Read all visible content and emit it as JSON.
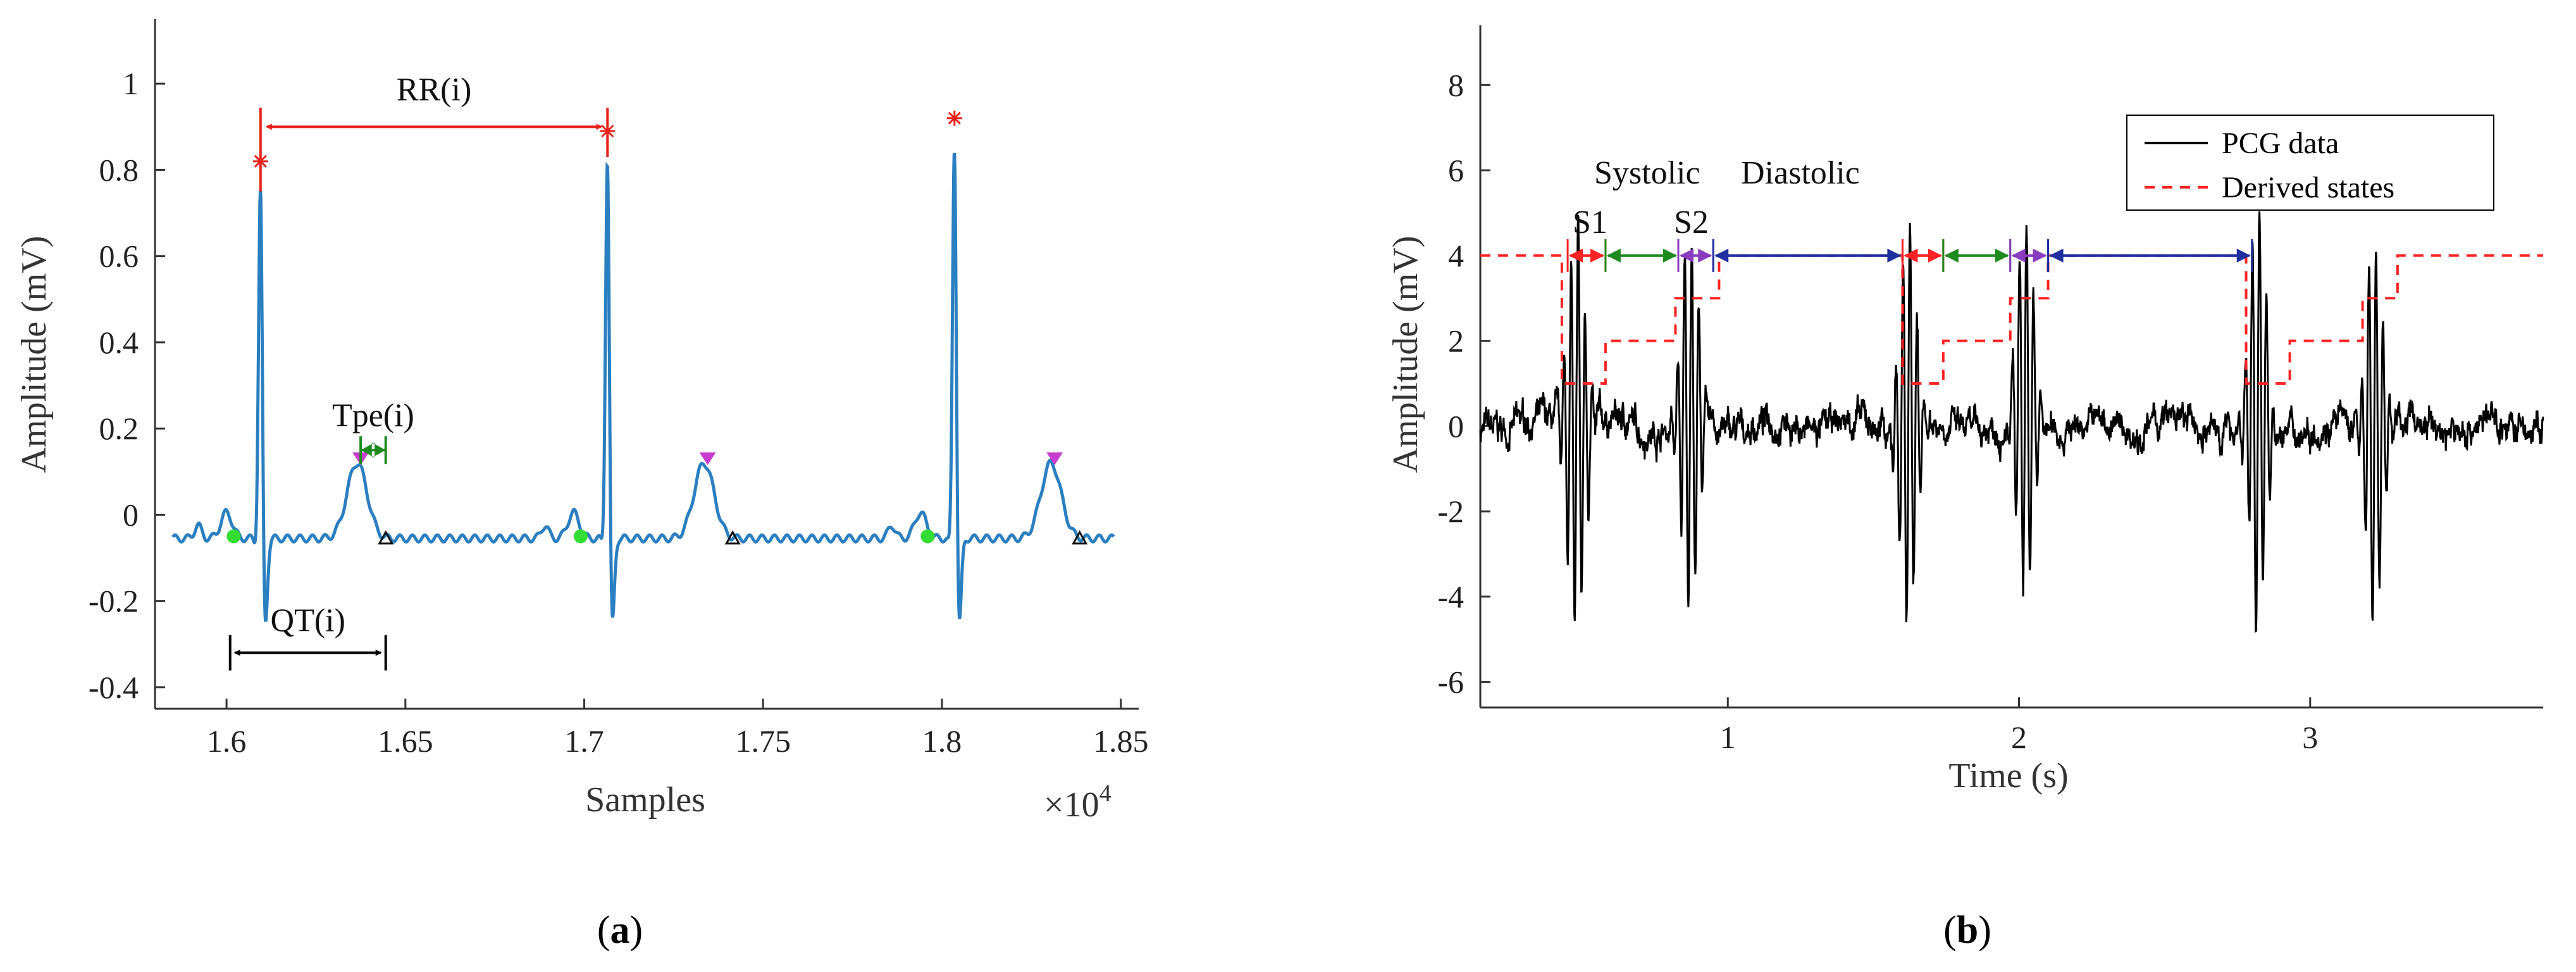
{
  "chart_data": [
    {
      "type": "line",
      "panel_label": "a",
      "xlabel": "Samples",
      "ylabel": "Amplitude (mV)",
      "x_multiplier": "×10",
      "x_multiplier_exp": "4",
      "xlim": [
        1.58,
        1.855
      ],
      "ylim": [
        -0.45,
        1.15
      ],
      "xticks": [
        1.6,
        1.65,
        1.7,
        1.75,
        1.8,
        1.85
      ],
      "xtick_labels": [
        "1.6",
        "1.65",
        "1.7",
        "1.75",
        "1.8",
        "1.85"
      ],
      "yticks": [
        -0.4,
        -0.2,
        0,
        0.2,
        0.4,
        0.6,
        0.8,
        1
      ],
      "ytick_labels": [
        "-0.4",
        "-0.2",
        "0",
        "0.2",
        "0.4",
        "0.6",
        "0.8",
        "1"
      ],
      "colors": {
        "signal": "#2a7fc0",
        "r_peak": "#e8221b",
        "t_peak": "#c83ccf",
        "q_onset": "#33dd33",
        "t_end": "#111111",
        "tpe": "#1e8a1e",
        "qt": "#000000",
        "rr": "#e8221b"
      },
      "r_peaks": [
        [
          1.6095,
          0.82
        ],
        [
          1.7065,
          0.89
        ],
        [
          1.8035,
          0.92
        ]
      ],
      "t_peaks": [
        [
          1.6375,
          0.13
        ],
        [
          1.7345,
          0.13
        ],
        [
          1.8315,
          0.13
        ]
      ],
      "q_onsets": [
        [
          1.602,
          -0.05
        ],
        [
          1.699,
          -0.05
        ],
        [
          1.796,
          -0.05
        ]
      ],
      "t_ends": [
        [
          1.6445,
          -0.055
        ],
        [
          1.7415,
          -0.055
        ],
        [
          1.8385,
          -0.055
        ]
      ],
      "annotations": {
        "rr": {
          "text": "RR(i)",
          "x1": 1.6095,
          "x2": 1.7065,
          "y": 0.9
        },
        "qt": {
          "text": "QT(i)",
          "x1": 1.601,
          "x2": 1.6445,
          "y": -0.32
        },
        "tpe": {
          "text": "Tpe(i)",
          "x1": 1.6375,
          "x2": 1.6445,
          "y": 0.15
        }
      }
    },
    {
      "type": "line",
      "panel_label": "b",
      "xlabel": "Time (s)",
      "ylabel": "Amplitude (mV)",
      "xlim": [
        0.15,
        3.8
      ],
      "ylim": [
        -6.6,
        9.4
      ],
      "xticks": [
        1,
        2,
        3
      ],
      "xtick_labels": [
        "1",
        "2",
        "3"
      ],
      "yticks": [
        -6,
        -4,
        -2,
        0,
        2,
        4,
        6,
        8
      ],
      "ytick_labels": [
        "-6",
        "-4",
        "-2",
        "0",
        "2",
        "4",
        "6",
        "8"
      ],
      "legend": [
        {
          "label": "PCG data",
          "style": "solid",
          "color": "#000000"
        },
        {
          "label": "Derived states",
          "style": "dashed",
          "color": "#ff2222"
        }
      ],
      "legend_position": "top-right",
      "annotations": {
        "s1": "S1",
        "s2": "S2",
        "systolic": "Systolic",
        "diastolic": "Diastolic"
      },
      "heart_sounds": [
        {
          "s1": 0.48,
          "s2": 0.87
        },
        {
          "s1": 1.62,
          "s2": 2.02
        },
        {
          "s1": 2.82,
          "s2": 3.22
        }
      ],
      "states": [
        [
          0.15,
          4
        ],
        [
          0.43,
          4
        ],
        [
          0.43,
          1
        ],
        [
          0.58,
          1
        ],
        [
          0.58,
          2
        ],
        [
          0.82,
          2
        ],
        [
          0.82,
          3
        ],
        [
          0.97,
          3
        ],
        [
          0.97,
          4
        ],
        [
          1.6,
          4
        ],
        [
          1.6,
          1
        ],
        [
          1.74,
          1
        ],
        [
          1.74,
          2
        ],
        [
          1.97,
          2
        ],
        [
          1.97,
          3
        ],
        [
          2.1,
          3
        ],
        [
          2.1,
          4
        ],
        [
          2.78,
          4
        ],
        [
          2.78,
          1
        ],
        [
          2.93,
          1
        ],
        [
          2.93,
          2
        ],
        [
          3.18,
          2
        ],
        [
          3.18,
          3
        ],
        [
          3.3,
          3
        ],
        [
          3.3,
          4
        ],
        [
          3.8,
          4
        ]
      ],
      "phase_arrows": [
        {
          "x1": 0.45,
          "x2": 0.58,
          "color": "#ff2222"
        },
        {
          "x1": 0.58,
          "x2": 0.83,
          "color": "#1e8a1e"
        },
        {
          "x1": 0.83,
          "x2": 0.95,
          "color": "#8a3cc0"
        },
        {
          "x1": 0.95,
          "x2": 1.6,
          "color": "#1f2fa0"
        },
        {
          "x1": 1.6,
          "x2": 1.74,
          "color": "#ff2222"
        },
        {
          "x1": 1.74,
          "x2": 1.97,
          "color": "#1e8a1e"
        },
        {
          "x1": 1.97,
          "x2": 2.1,
          "color": "#8a3cc0"
        },
        {
          "x1": 2.1,
          "x2": 2.8,
          "color": "#1f2fa0"
        }
      ]
    }
  ]
}
